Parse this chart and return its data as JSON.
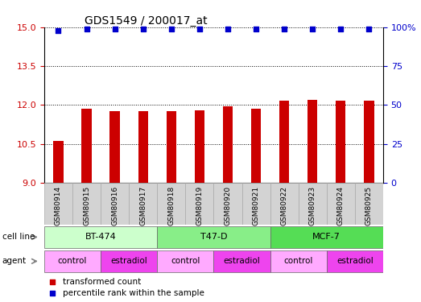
{
  "title": "GDS1549 / 200017_at",
  "samples": [
    "GSM80914",
    "GSM80915",
    "GSM80916",
    "GSM80917",
    "GSM80918",
    "GSM80919",
    "GSM80920",
    "GSM80921",
    "GSM80922",
    "GSM80923",
    "GSM80924",
    "GSM80925"
  ],
  "bar_values": [
    10.6,
    11.85,
    11.75,
    11.75,
    11.75,
    11.8,
    11.95,
    11.85,
    12.15,
    12.2,
    12.15,
    12.15
  ],
  "percentile_values": [
    98,
    99,
    99,
    99,
    99,
    99,
    99,
    99,
    99,
    99,
    99,
    99
  ],
  "bar_color": "#cc0000",
  "dot_color": "#0000cc",
  "ylim_left": [
    9,
    15
  ],
  "ylim_right": [
    0,
    100
  ],
  "yticks_left": [
    9,
    10.5,
    12,
    13.5,
    15
  ],
  "yticks_right": [
    0,
    25,
    50,
    75,
    100
  ],
  "cell_lines": [
    {
      "label": "BT-474",
      "start": 0,
      "end": 4,
      "color": "#ccffcc"
    },
    {
      "label": "T47-D",
      "start": 4,
      "end": 8,
      "color": "#88ee88"
    },
    {
      "label": "MCF-7",
      "start": 8,
      "end": 12,
      "color": "#55dd55"
    }
  ],
  "agents": [
    {
      "label": "control",
      "start": 0,
      "end": 2,
      "color": "#ffaaff"
    },
    {
      "label": "estradiol",
      "start": 2,
      "end": 4,
      "color": "#ee44ee"
    },
    {
      "label": "control",
      "start": 4,
      "end": 6,
      "color": "#ffaaff"
    },
    {
      "label": "estradiol",
      "start": 6,
      "end": 8,
      "color": "#ee44ee"
    },
    {
      "label": "control",
      "start": 8,
      "end": 10,
      "color": "#ffaaff"
    },
    {
      "label": "estradiol",
      "start": 10,
      "end": 12,
      "color": "#ee44ee"
    }
  ],
  "legend_bar_label": "transformed count",
  "legend_dot_label": "percentile rank within the sample",
  "background_color": "#ffffff",
  "title_fontsize": 10,
  "tick_fontsize": 8,
  "bar_width": 0.35
}
